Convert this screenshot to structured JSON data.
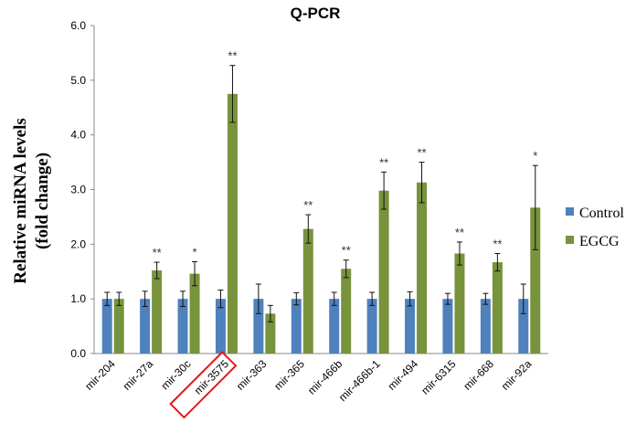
{
  "chart_data": {
    "type": "bar",
    "title": "Q-PCR",
    "xlabel": "",
    "ylabel": "Relative miRNA levels",
    "ylabel2": "(fold change)",
    "ylim": [
      0,
      6
    ],
    "yticks": [
      "0.0",
      "1.0",
      "2.0",
      "3.0",
      "4.0",
      "5.0",
      "6.0"
    ],
    "grid": false,
    "legend_position": "right",
    "highlighted_category": "mir-3575",
    "categories": [
      "mir-204",
      "mir-27a",
      "mir-30c",
      "mir-3575",
      "mir-363",
      "mir-365",
      "mir-466b",
      "mir-466b-1",
      "mir-494",
      "mir-6315",
      "mir-668",
      "mir-92a"
    ],
    "series": [
      {
        "name": "Control",
        "color": "#4f81bd",
        "values": [
          1.0,
          1.0,
          1.0,
          1.0,
          1.0,
          1.0,
          1.0,
          1.0,
          1.0,
          1.0,
          1.0,
          1.0
        ],
        "errors": [
          0.12,
          0.14,
          0.14,
          0.16,
          0.27,
          0.11,
          0.12,
          0.12,
          0.13,
          0.1,
          0.1,
          0.27
        ]
      },
      {
        "name": "EGCG",
        "color": "#77933c",
        "values": [
          1.0,
          1.52,
          1.46,
          4.75,
          0.73,
          2.28,
          1.55,
          2.98,
          3.13,
          1.83,
          1.67,
          2.67
        ],
        "errors": [
          0.12,
          0.15,
          0.22,
          0.52,
          0.15,
          0.26,
          0.16,
          0.34,
          0.37,
          0.21,
          0.16,
          0.77
        ]
      }
    ],
    "significance": [
      "",
      "**",
      "*",
      "**",
      "",
      "**",
      "**",
      "**",
      "**",
      "**",
      "**",
      "*"
    ]
  }
}
